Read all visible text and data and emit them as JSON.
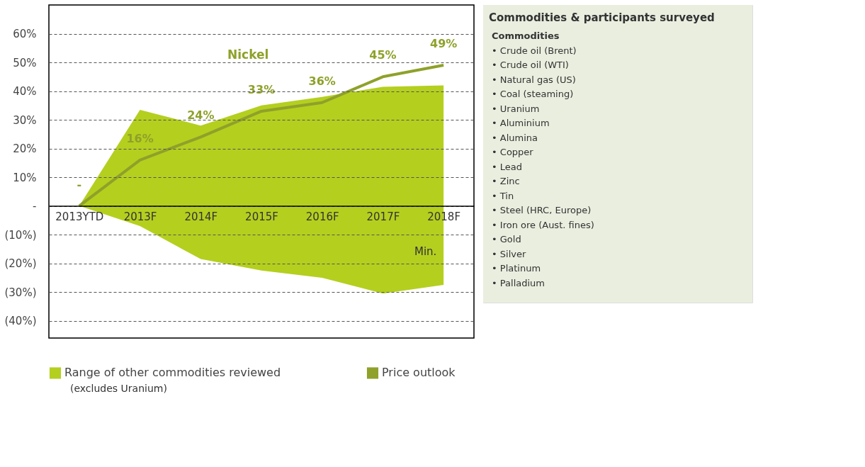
{
  "chart_data": [
    {
      "type": "line",
      "categories": [
        "2013YTD",
        "2013F",
        "2014F",
        "2015F",
        "2016F",
        "2017F",
        "2018F"
      ],
      "series": [
        {
          "name": "Range of other commodities reviewed",
          "type": "area",
          "color": "#b5cf1f",
          "values": [
            0,
            33.5,
            28,
            35,
            38,
            41.5,
            42
          ]
        },
        {
          "type": "area",
          "color": "#b5cf1f",
          "values": [
            0,
            -7,
            -18.5,
            -22.5,
            -25,
            -30.5,
            -27.5
          ]
        },
        {
          "name": "Price outlook",
          "type": "line",
          "color": "#8fa12a",
          "values": [
            0,
            16,
            24,
            33,
            36,
            45,
            49
          ],
          "value_labels": [
            "-",
            "16%",
            "24%",
            "33%",
            "36%",
            "45%",
            "49%"
          ]
        }
      ],
      "ylim": [
        -46,
        70
      ],
      "yticks": [
        {
          "value": 60,
          "label": "60%"
        },
        {
          "value": 50,
          "label": "50%"
        },
        {
          "value": 40,
          "label": "40%"
        },
        {
          "value": 30,
          "label": "30%"
        },
        {
          "value": 20,
          "label": "20%"
        },
        {
          "value": 10,
          "label": "10%"
        },
        {
          "value": 0,
          "label": "-"
        },
        {
          "value": -10,
          "label": "(10%)"
        },
        {
          "value": -20,
          "label": "(20%)"
        },
        {
          "value": -30,
          "label": "(30%)"
        },
        {
          "value": -40,
          "label": "(40%)"
        }
      ],
      "grid": "y",
      "legend": "bottom",
      "annotations": [
        "Nickel",
        "Min.",
        "(excludes Uranium)"
      ]
    },
    {
      "type": "other",
      "title": "Commodities & participants surveyed",
      "annotations": [
        "Commodities",
        "• Crude oil (Brent)",
        "• Crude oil (WTI)",
        "• Natural gas (US)",
        "• Coal (steaming)",
        "• Uranium",
        "• Aluminium",
        "• Alumina",
        "• Copper",
        "• Lead",
        "• Zinc",
        "• Tin",
        "• Steel (HRC, Europe)",
        "• Iron ore (Aust. fines)",
        "• Gold",
        "• Silver",
        "• Platinum",
        "• Palladium"
      ]
    }
  ]
}
